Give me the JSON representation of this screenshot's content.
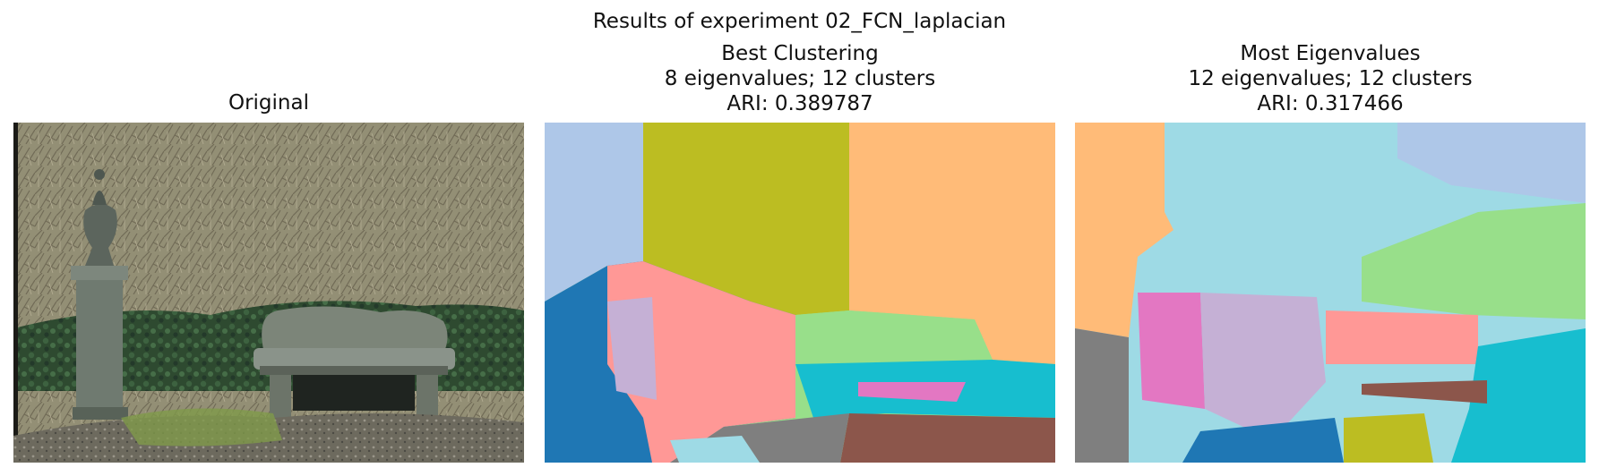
{
  "figure": {
    "suptitle": "Results of experiment 02_FCN_laplacian"
  },
  "panels": [
    {
      "title_lines": [
        "Original"
      ],
      "content": "photo: stone bench and urn pedestal in a garden with bare shrubs and ivy"
    },
    {
      "title_lines": [
        "Best Clustering",
        "8 eigenvalues; 12 clusters",
        "ARI: 0.389787"
      ],
      "eigenvalues": 8,
      "clusters": 12,
      "ari": 0.389787
    },
    {
      "title_lines": [
        "Most Eigenvalues",
        "12 eigenvalues; 12 clusters",
        "ARI: 0.317466"
      ],
      "eigenvalues": 12,
      "clusters": 12,
      "ari": 0.317466
    }
  ],
  "colors": {
    "tab_blue": "#1f77b4",
    "tab_lightblue": "#aec7e8",
    "tab_orange_light": "#ffbb78",
    "tab_olive": "#bcbd22",
    "tab_pink": "#ff9896",
    "tab_green_light": "#98df8a",
    "tab_cyan": "#17becf",
    "tab_cyan_light": "#9edae5",
    "tab_purple_light": "#c5b0d5",
    "tab_magenta": "#e377c2",
    "tab_brown": "#8c564b",
    "tab_gray": "#7f7f7f"
  }
}
